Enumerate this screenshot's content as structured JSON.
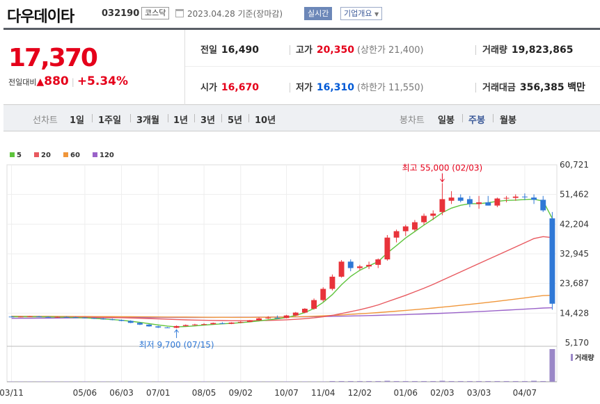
{
  "header": {
    "name": "다우데이타",
    "code": "032190",
    "market": "코스닥",
    "date": "2023.04.28 기준(장마감)",
    "live_label": "실시간",
    "corp_label": "기업개요"
  },
  "price": {
    "current": "17,370",
    "change_label": "전일대비",
    "change_amount": "880",
    "change_pct": "+5.34%"
  },
  "stats": {
    "prev": {
      "label": "전일",
      "value": "16,490"
    },
    "high": {
      "label": "고가",
      "value": "20,350",
      "sub": "(상한가 21,400)"
    },
    "volume": {
      "label": "거래량",
      "value": "19,823,865"
    },
    "open": {
      "label": "시가",
      "value": "16,670"
    },
    "low": {
      "label": "저가",
      "value": "16,310",
      "sub": "(하한가 11,550)"
    },
    "amount": {
      "label": "거래대금",
      "value": "356,385",
      "unit": "백만"
    }
  },
  "toolbar": {
    "line_label": "선차트",
    "line_items": [
      "1일",
      "1주일",
      "3개월",
      "1년",
      "3년",
      "5년",
      "10년"
    ],
    "candle_label": "봉차트",
    "candle_items": [
      "일봉",
      "주봉",
      "월봉"
    ],
    "active_candle": "주봉"
  },
  "colors": {
    "up": "#e8333a",
    "down": "#2f78d6",
    "ma5": "#5ec43c",
    "ma20": "#e8595f",
    "ma60": "#f0963a",
    "ma120": "#9a62c9",
    "volume": "#9a87c7"
  },
  "chart_data": {
    "type": "candlestick",
    "period": "weekly",
    "legend": [
      {
        "name": "5",
        "color": "#5ec43c"
      },
      {
        "name": "20",
        "color": "#e8595f"
      },
      {
        "name": "60",
        "color": "#f0963a"
      },
      {
        "name": "120",
        "color": "#9a62c9"
      }
    ],
    "y_ticks": [
      5170,
      14428,
      23687,
      32945,
      42204,
      51462,
      60721
    ],
    "y_tick_labels": [
      "5,170",
      "14,428",
      "23,687",
      "32,945",
      "42,204",
      "51,462",
      "60,721"
    ],
    "ylim": [
      5170,
      60721
    ],
    "x_tick_labels": [
      "03/11",
      "05/06",
      "06/03",
      "07/01",
      "08/05",
      "09/02",
      "10/07",
      "11/04",
      "12/02",
      "01/06",
      "02/03",
      "03/03",
      "04/07"
    ],
    "x_tick_index": [
      0,
      8,
      12,
      16,
      21,
      25,
      30,
      34,
      38,
      43,
      47,
      51,
      56
    ],
    "volume_label": "거래량",
    "annotations": {
      "high": {
        "text": "최고 55,000 (02/03)",
        "value": 55000,
        "index": 47
      },
      "low": {
        "text": "최저 9,700 (07/15)",
        "value": 9700,
        "index": 18
      }
    },
    "candles": [
      [
        13350,
        13500,
        13100,
        13200
      ],
      [
        13200,
        13450,
        13100,
        13350
      ],
      [
        13300,
        13550,
        13200,
        13450
      ],
      [
        13400,
        13550,
        13150,
        13250
      ],
      [
        13250,
        13450,
        13050,
        13150
      ],
      [
        13150,
        13400,
        13000,
        13250
      ],
      [
        13250,
        13450,
        13100,
        13150
      ],
      [
        13150,
        13350,
        12950,
        13050
      ],
      [
        13050,
        13200,
        12800,
        12900
      ],
      [
        12900,
        13050,
        12600,
        12700
      ],
      [
        12700,
        12900,
        12400,
        12500
      ],
      [
        12500,
        12700,
        12200,
        12300
      ],
      [
        12300,
        12450,
        11900,
        12000
      ],
      [
        12000,
        12200,
        11300,
        11400
      ],
      [
        11400,
        11600,
        10700,
        10850
      ],
      [
        10850,
        11000,
        10200,
        10300
      ],
      [
        10300,
        10500,
        9800,
        9950
      ],
      [
        9950,
        10100,
        9750,
        9850
      ],
      [
        9850,
        10600,
        9700,
        10400
      ],
      [
        10400,
        10900,
        10250,
        10700
      ],
      [
        10700,
        11100,
        10550,
        10900
      ],
      [
        10900,
        11300,
        10700,
        11000
      ],
      [
        11000,
        11500,
        10800,
        11350
      ],
      [
        11300,
        11600,
        11000,
        11100
      ],
      [
        11100,
        11600,
        11000,
        11500
      ],
      [
        11500,
        11900,
        11300,
        11700
      ],
      [
        11700,
        12300,
        11600,
        12200
      ],
      [
        12200,
        13100,
        12000,
        12800
      ],
      [
        12800,
        13500,
        12600,
        13000
      ],
      [
        13000,
        13700,
        12800,
        12900
      ],
      [
        12900,
        13900,
        12800,
        13700
      ],
      [
        13700,
        14800,
        13500,
        14600
      ],
      [
        14600,
        16000,
        14400,
        15800
      ],
      [
        15800,
        19000,
        15500,
        18500
      ],
      [
        18500,
        22500,
        18000,
        22000
      ],
      [
        22000,
        26500,
        21500,
        25800
      ],
      [
        25800,
        31000,
        25500,
        30500
      ],
      [
        30500,
        31200,
        27500,
        28500
      ],
      [
        28500,
        29500,
        27800,
        29000
      ],
      [
        29000,
        30500,
        28200,
        29500
      ],
      [
        29500,
        31500,
        28500,
        31200
      ],
      [
        31200,
        38800,
        30800,
        38000
      ],
      [
        38000,
        40500,
        36500,
        40000
      ],
      [
        40000,
        42000,
        38500,
        41500
      ],
      [
        40500,
        43500,
        40000,
        42800
      ],
      [
        42800,
        45500,
        42000,
        44800
      ],
      [
        44800,
        46500,
        43500,
        45500
      ],
      [
        46000,
        55000,
        45000,
        50000
      ],
      [
        49500,
        52500,
        48500,
        50500
      ],
      [
        50500,
        51500,
        49000,
        49500
      ],
      [
        50000,
        51000,
        47500,
        48500
      ],
      [
        48500,
        51000,
        47000,
        49000
      ],
      [
        49000,
        51000,
        48000,
        48000
      ],
      [
        48000,
        50500,
        47500,
        50200
      ],
      [
        50200,
        51000,
        49000,
        50400
      ],
      [
        50400,
        51500,
        49500,
        50800
      ],
      [
        50800,
        51800,
        49700,
        50600
      ],
      [
        50500,
        51500,
        48500,
        49800
      ],
      [
        49800,
        51000,
        46000,
        46500
      ],
      [
        44000,
        46000,
        15500,
        17370
      ]
    ],
    "ma5": [
      13300,
      13320,
      13300,
      13280,
      13250,
      13200,
      13150,
      13050,
      12950,
      12800,
      12620,
      12420,
      12200,
      11900,
      11550,
      11150,
      10750,
      10400,
      10150,
      10250,
      10450,
      10700,
      10900,
      11100,
      11250,
      11450,
      11700,
      12000,
      12350,
      12650,
      13100,
      13700,
      14600,
      15900,
      17800,
      20200,
      23300,
      25900,
      27800,
      29200,
      30500,
      33200,
      35500,
      37900,
      39900,
      41900,
      43800,
      45800,
      47200,
      48100,
      48600,
      48600,
      48900,
      49300,
      49600,
      49700,
      49900,
      50000,
      49400,
      44000
    ],
    "ma20": [
      13350,
      13330,
      13310,
      13290,
      13270,
      13250,
      13230,
      13210,
      13180,
      13150,
      13110,
      13060,
      13000,
      12920,
      12830,
      12730,
      12630,
      12520,
      12420,
      12330,
      12260,
      12200,
      12150,
      12110,
      12080,
      12070,
      12080,
      12110,
      12160,
      12240,
      12350,
      12500,
      12700,
      12950,
      13300,
      13750,
      14300,
      14900,
      15500,
      16200,
      17000,
      18000,
      19000,
      20000,
      21100,
      22200,
      23400,
      24700,
      26000,
      27300,
      28600,
      29900,
      31200,
      32500,
      33800,
      35100,
      36400,
      37700,
      38300,
      38000
    ],
    "ma60": [
      13450,
      13440,
      13430,
      13420,
      13410,
      13400,
      13390,
      13380,
      13370,
      13360,
      13350,
      13340,
      13330,
      13310,
      13290,
      13270,
      13250,
      13230,
      13210,
      13190,
      13170,
      13150,
      13140,
      13130,
      13120,
      13120,
      13120,
      13130,
      13150,
      13180,
      13220,
      13280,
      13360,
      13460,
      13580,
      13720,
      13880,
      14050,
      14230,
      14420,
      14620,
      14830,
      15050,
      15280,
      15520,
      15770,
      16030,
      16300,
      16580,
      16870,
      17170,
      17480,
      17800,
      18130,
      18470,
      18820,
      19180,
      19550,
      19900,
      20000
    ],
    "ma120": [
      12800,
      12820,
      12840,
      12860,
      12880,
      12900,
      12920,
      12940,
      12960,
      12980,
      13000,
      13010,
      13020,
      13030,
      13040,
      13050,
      13060,
      13070,
      13080,
      13090,
      13100,
      13110,
      13120,
      13130,
      13140,
      13150,
      13160,
      13180,
      13200,
      13220,
      13240,
      13270,
      13300,
      13340,
      13380,
      13430,
      13480,
      13540,
      13600,
      13670,
      13740,
      13820,
      13900,
      13990,
      14080,
      14180,
      14290,
      14400,
      14520,
      14650,
      14780,
      14920,
      15060,
      15210,
      15360,
      15520,
      15680,
      15850,
      16020,
      16100
    ],
    "volume": [
      1,
      1,
      1,
      1,
      1,
      1,
      1,
      1,
      1,
      1,
      1,
      1,
      1,
      1,
      1,
      1,
      1,
      1,
      1,
      1,
      1,
      1,
      1,
      1,
      1,
      1,
      1,
      1,
      1,
      1,
      1,
      1,
      1,
      1,
      1,
      2,
      2,
      2,
      2,
      2,
      2,
      3,
      2,
      2,
      2,
      2,
      2,
      3,
      2,
      2,
      2,
      2,
      2,
      2,
      2,
      2,
      2,
      3,
      2,
      100
    ]
  }
}
